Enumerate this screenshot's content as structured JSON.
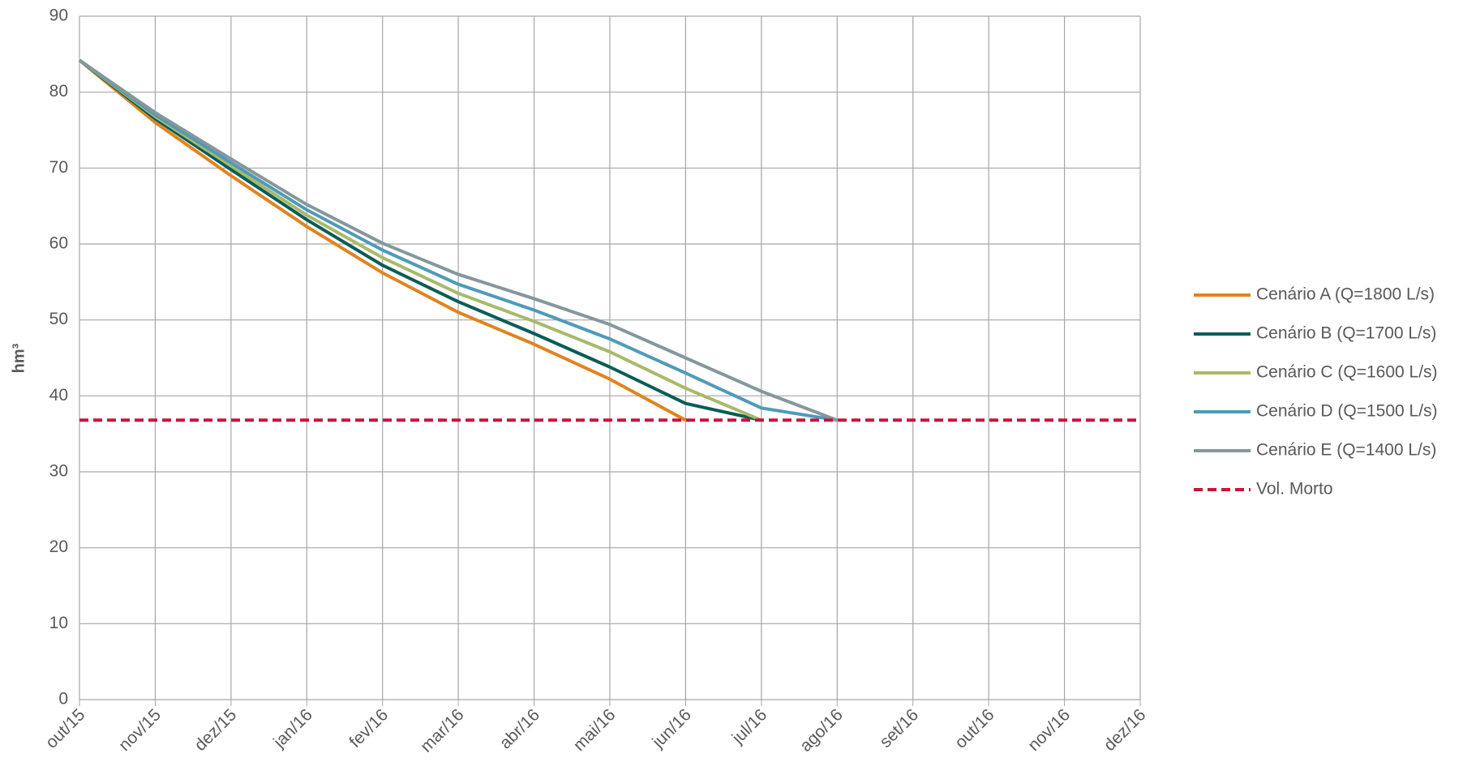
{
  "chart_data": {
    "type": "line",
    "ylabel": "hm³",
    "categories": [
      "out/15",
      "nov/15",
      "dez/15",
      "jan/16",
      "fev/16",
      "mar/16",
      "abr/16",
      "mai/16",
      "jun/16",
      "jul/16",
      "ago/16",
      "set/16",
      "out/16",
      "nov/16",
      "dez/16"
    ],
    "ylim": [
      0,
      90
    ],
    "yticks": [
      0,
      10,
      20,
      30,
      40,
      50,
      60,
      70,
      80,
      90
    ],
    "grid": true,
    "legend": "right",
    "series": [
      {
        "name": "Cenário A (Q=1800 L/s)",
        "color": "#e0841e",
        "values": [
          84.2,
          76,
          69,
          62.3,
          56.2,
          51,
          46.8,
          42.2,
          36.8,
          null,
          null,
          null,
          null,
          null,
          null
        ]
      },
      {
        "name": "Cenário B (Q=1700 L/s)",
        "color": "#0b5c57",
        "values": [
          84.2,
          76.5,
          69.8,
          63.2,
          57.2,
          52.4,
          48.2,
          43.8,
          39,
          36.8,
          null,
          null,
          null,
          null,
          null
        ]
      },
      {
        "name": "Cenário C (Q=1600 L/s)",
        "color": "#a9b96a",
        "values": [
          84.2,
          76.8,
          70.3,
          63.8,
          58.2,
          53.5,
          49.8,
          45.8,
          41,
          36.8,
          null,
          null,
          null,
          null,
          null
        ]
      },
      {
        "name": "Cenário D (Q=1500 L/s)",
        "color": "#4f9ab8",
        "values": [
          84.2,
          77,
          70.7,
          64.5,
          59.2,
          54.7,
          51.3,
          47.5,
          43,
          38.4,
          36.8,
          null,
          null,
          null,
          null
        ]
      },
      {
        "name": "Cenário E (Q=1400 L/s)",
        "color": "#84979c",
        "values": [
          84.2,
          77.3,
          71.2,
          65.2,
          60.1,
          56,
          52.8,
          49.4,
          45,
          40.6,
          36.8,
          null,
          null,
          null,
          null
        ]
      },
      {
        "name": "Vol. Morto",
        "color": "#c8143c",
        "dashed": true,
        "values": [
          36.8,
          36.8,
          36.8,
          36.8,
          36.8,
          36.8,
          36.8,
          36.8,
          36.8,
          36.8,
          36.8,
          36.8,
          36.8,
          36.8,
          36.8
        ]
      }
    ]
  }
}
